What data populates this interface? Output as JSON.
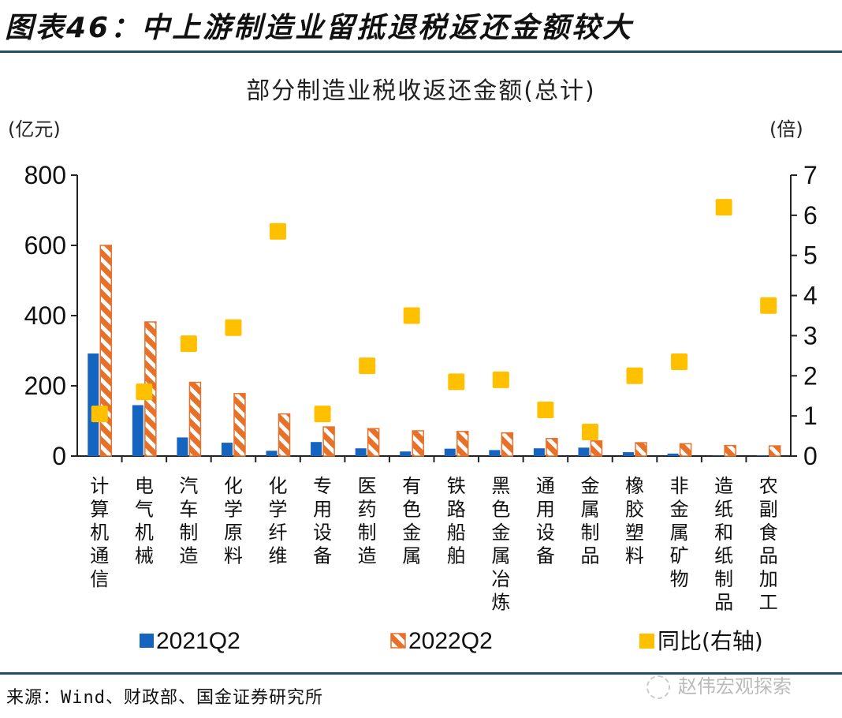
{
  "header": {
    "figure_title": "图表46：中上游制造业留抵退税返还金额较大"
  },
  "footer": {
    "source": "来源：Wind、财政部、国金证券研究所",
    "watermark": "赵伟宏观探索",
    "watermark_icon": "wechat-icon"
  },
  "colors": {
    "series_2021": "#1565c0",
    "series_2022": "#e8712a",
    "series_yoy": "#ffc000",
    "rule": "#1f4e68"
  },
  "chart_data": {
    "type": "bar",
    "title": "部分制造业税收返还金额(总计)",
    "ylabel": "(亿元)",
    "y2label": "(倍)",
    "ylim": [
      0,
      800
    ],
    "yticks": [
      0,
      200,
      400,
      600,
      800
    ],
    "y2lim": [
      0,
      7
    ],
    "y2ticks": [
      0,
      1,
      2,
      3,
      4,
      5,
      6,
      7
    ],
    "grid": false,
    "legend_position": "bottom",
    "categories": [
      "计算机通信",
      "电气机械",
      "汽车制造",
      "化学原料",
      "化学纤维",
      "专用设备",
      "医药制造",
      "有色金属",
      "铁路船舶",
      "黑色金属冶炼",
      "通用设备",
      "金属制品",
      "橡胶塑料",
      "非金属矿物",
      "造纸和纸制品",
      "农副食品加工"
    ],
    "series": [
      {
        "name": "2021Q2",
        "type": "bar",
        "axis": "left",
        "style": "solid",
        "values": [
          292,
          145,
          53,
          38,
          15,
          40,
          22,
          13,
          21,
          17,
          22,
          24,
          11,
          7,
          1,
          2
        ]
      },
      {
        "name": "2022Q2",
        "type": "bar",
        "axis": "left",
        "style": "hatched",
        "values": [
          600,
          382,
          210,
          178,
          120,
          83,
          78,
          72,
          70,
          66,
          50,
          43,
          38,
          35,
          30,
          29
        ]
      },
      {
        "name": "同比(右轴)",
        "type": "scatter",
        "axis": "right",
        "marker": "square",
        "values": [
          1.05,
          1.6,
          2.8,
          3.2,
          5.6,
          1.05,
          2.25,
          3.5,
          1.85,
          1.9,
          1.15,
          0.6,
          2.0,
          2.35,
          6.2,
          3.75
        ]
      }
    ]
  }
}
